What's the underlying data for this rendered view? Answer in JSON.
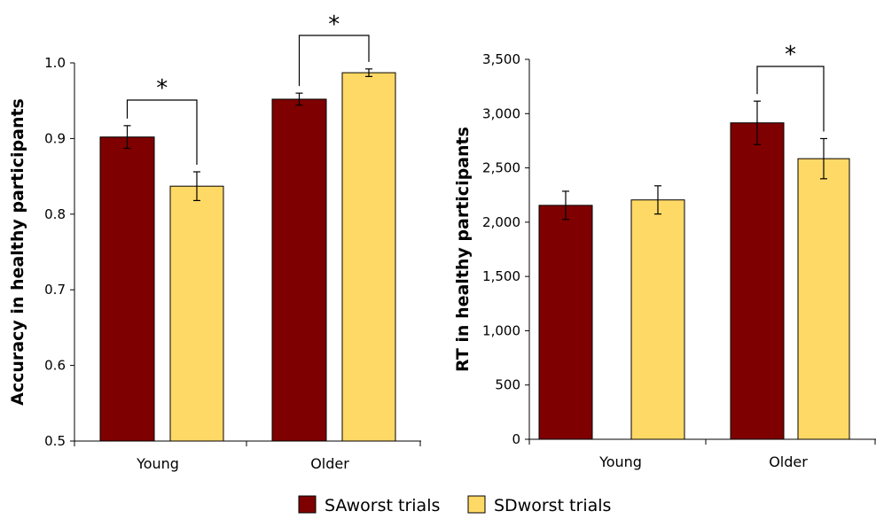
{
  "colors": {
    "sa": "#7f0000",
    "sd": "#ffd966",
    "stroke": "#000000"
  },
  "legend": {
    "placement": "bottom-center",
    "items": [
      {
        "label": "SAworst trials",
        "color": "#7f0000"
      },
      {
        "label": "SDworst trials",
        "color": "#ffd966"
      }
    ]
  },
  "chart_data": [
    {
      "type": "bar",
      "ylabel": "Accuracy in healthy participants",
      "ylim": [
        0.5,
        1.0
      ],
      "yticks": [
        0.5,
        0.6,
        0.7,
        0.8,
        0.9,
        1.0
      ],
      "ytick_labels": [
        "0.5",
        "0.6",
        "0.7",
        "0.8",
        "0.9",
        "1.0"
      ],
      "categories": [
        "Young",
        "Older"
      ],
      "series": [
        {
          "name": "SAworst trials",
          "values": [
            0.902,
            0.952
          ],
          "errors": [
            0.015,
            0.008
          ]
        },
        {
          "name": "SDworst trials",
          "values": [
            0.837,
            0.987
          ],
          "errors": [
            0.019,
            0.005
          ]
        }
      ],
      "annotations": [
        {
          "category": "Young",
          "text": "*"
        },
        {
          "category": "Older",
          "text": "*"
        }
      ],
      "grid": false
    },
    {
      "type": "bar",
      "ylabel": "RT in healthy participants",
      "ylim": [
        0,
        3500
      ],
      "yticks": [
        0,
        500,
        1000,
        1500,
        2000,
        2500,
        3000,
        3500
      ],
      "ytick_labels": [
        "0",
        "500",
        "1,000",
        "1,500",
        "2,000",
        "2,500",
        "3,000",
        "3,500"
      ],
      "categories": [
        "Young",
        "Older"
      ],
      "series": [
        {
          "name": "SAworst trials",
          "values": [
            2155,
            2915
          ],
          "errors": [
            130,
            200
          ]
        },
        {
          "name": "SDworst trials",
          "values": [
            2205,
            2585
          ],
          "errors": [
            130,
            185
          ]
        }
      ],
      "annotations": [
        {
          "category": "Older",
          "text": "*"
        }
      ],
      "grid": false
    }
  ]
}
